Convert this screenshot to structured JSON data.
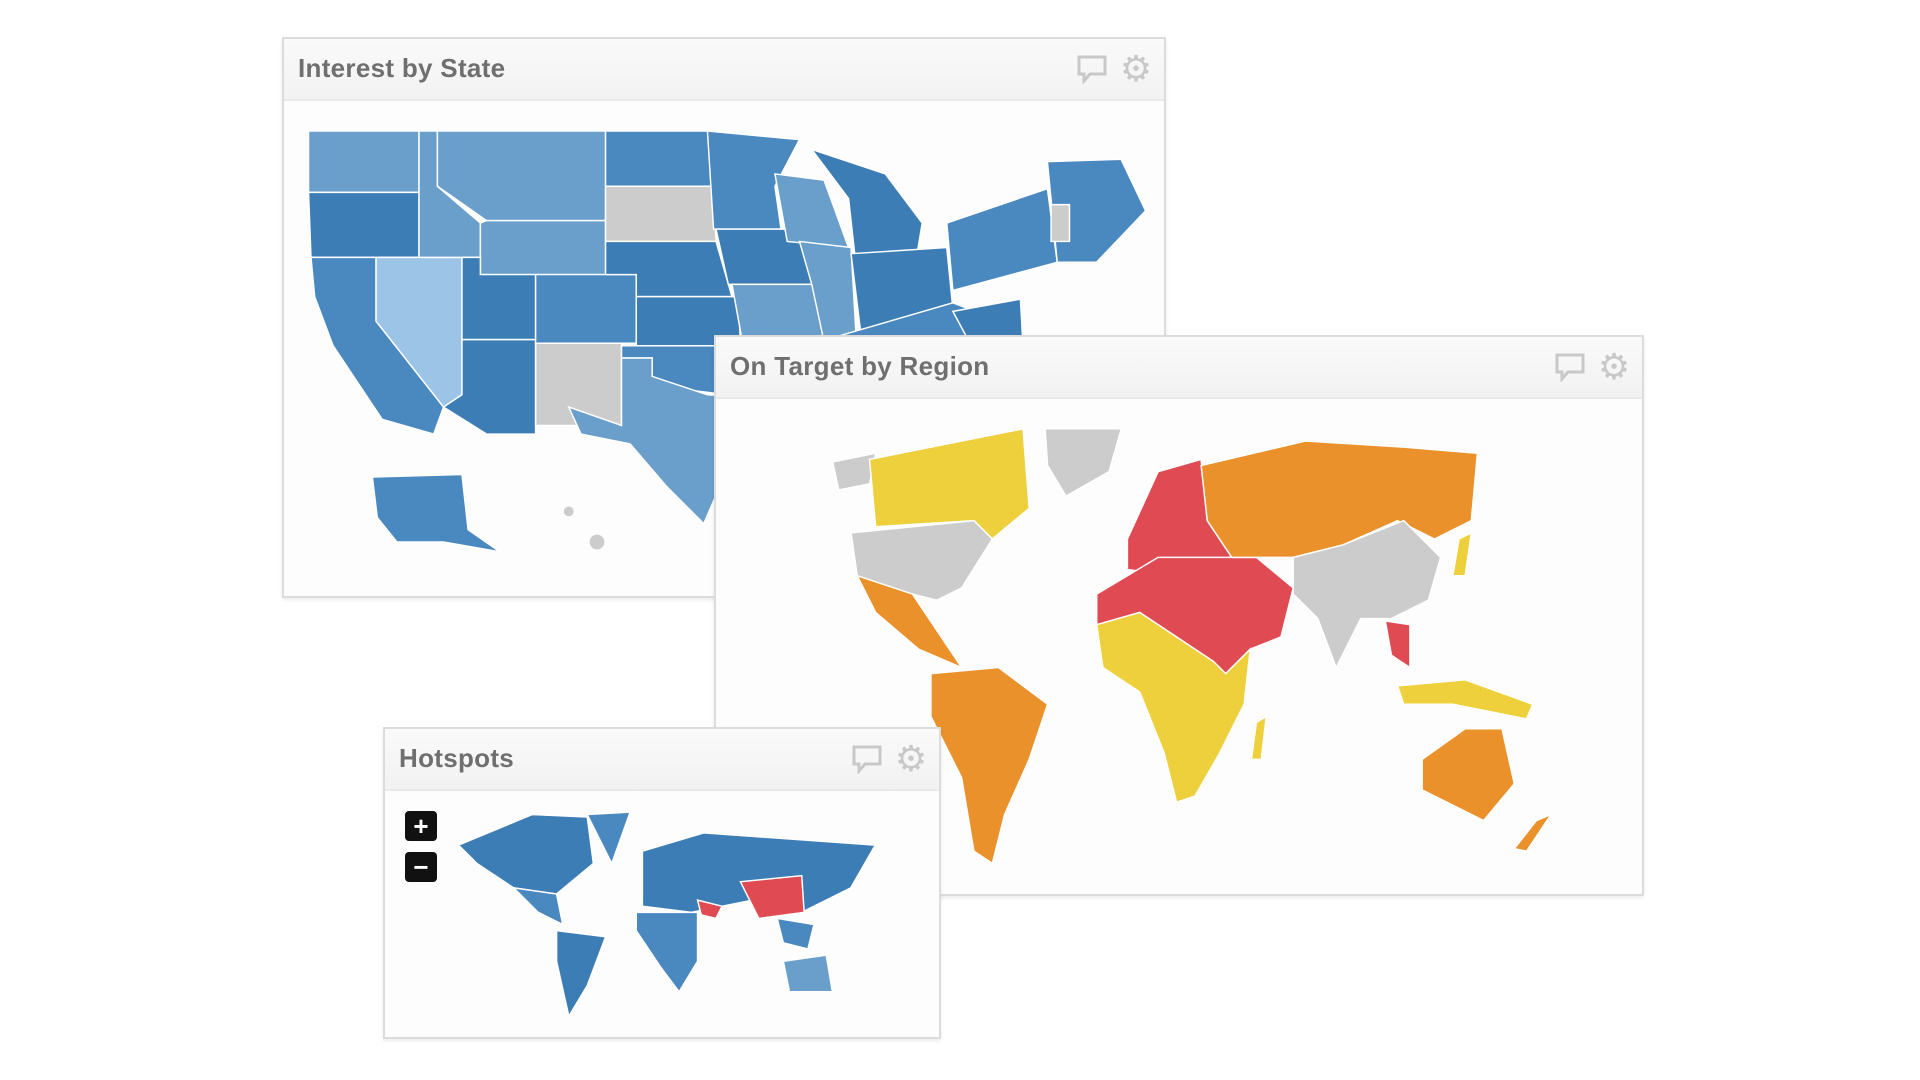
{
  "panels": {
    "interest_by_state": {
      "title": "Interest by State"
    },
    "on_target_by_region": {
      "title": "On Target by Region"
    },
    "hotspots": {
      "title": "Hotspots",
      "zoom_in_label": "+",
      "zoom_out_label": "−"
    }
  },
  "icons": {
    "comment": "comment-icon",
    "settings": "gear-icon"
  },
  "colors": {
    "blue_dark": "#3d7db5",
    "blue_medium": "#4a88c0",
    "blue_mid_light": "#6a9fcc",
    "blue_light": "#9cc4e6",
    "no_data_gray": "#cccccc",
    "red": "#e04a52",
    "orange": "#ea912b",
    "yellow": "#eed03c"
  }
}
